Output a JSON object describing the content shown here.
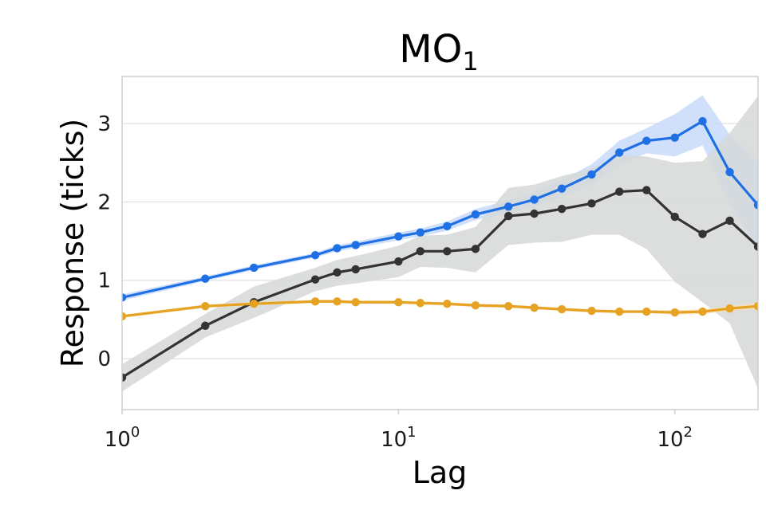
{
  "chart_data": {
    "type": "line",
    "title": "MO",
    "title_subscript": "1",
    "xlabel": "Lag",
    "ylabel": "Response (ticks)",
    "xscale": "log",
    "xlim": [
      1,
      200
    ],
    "ylim": [
      -0.65,
      3.6
    ],
    "x_ticks": [
      {
        "value": 1,
        "base": "10",
        "exp": "0"
      },
      {
        "value": 10,
        "base": "10",
        "exp": "1"
      },
      {
        "value": 100,
        "base": "10",
        "exp": "2"
      }
    ],
    "y_ticks": [
      {
        "value": 0,
        "label": "0"
      },
      {
        "value": 1,
        "label": "1"
      },
      {
        "value": 2,
        "label": "2"
      },
      {
        "value": 3,
        "label": "3"
      }
    ],
    "grid": "horizontal",
    "series": [
      {
        "color": "#1f6fe5",
        "band_color": "#c8dafa",
        "x": [
          1,
          2,
          3,
          5,
          6,
          7,
          10,
          12,
          15,
          19,
          25,
          31,
          39,
          50,
          63,
          79,
          100,
          126,
          158,
          200
        ],
        "values": [
          0.78,
          1.02,
          1.16,
          1.32,
          1.41,
          1.45,
          1.56,
          1.61,
          1.69,
          1.84,
          1.94,
          2.03,
          2.17,
          2.35,
          2.63,
          2.78,
          2.82,
          3.03,
          2.38,
          1.96
        ],
        "band_lower": [
          0.74,
          0.99,
          1.13,
          1.29,
          1.37,
          1.41,
          1.51,
          1.56,
          1.63,
          1.77,
          1.86,
          1.94,
          2.06,
          2.22,
          2.48,
          2.62,
          2.58,
          2.72,
          1.96,
          1.42
        ],
        "band_upper": [
          0.82,
          1.05,
          1.19,
          1.35,
          1.45,
          1.49,
          1.61,
          1.66,
          1.75,
          1.91,
          2.02,
          2.12,
          2.28,
          2.48,
          2.78,
          2.94,
          3.12,
          3.36,
          2.86,
          2.52
        ]
      },
      {
        "color": "#333333",
        "band_color": "#d6d8d8",
        "x": [
          1,
          2,
          3,
          5,
          6,
          7,
          10,
          12,
          15,
          19,
          25,
          31,
          39,
          50,
          63,
          79,
          100,
          126,
          158,
          200
        ],
        "values": [
          -0.24,
          0.42,
          0.72,
          1.01,
          1.1,
          1.14,
          1.24,
          1.37,
          1.37,
          1.4,
          1.82,
          1.85,
          1.91,
          1.98,
          2.13,
          2.15,
          1.81,
          1.59,
          1.76,
          1.43
        ],
        "band_lower": [
          -0.42,
          0.27,
          0.52,
          0.86,
          0.93,
          0.96,
          1.04,
          1.17,
          1.16,
          1.1,
          1.45,
          1.48,
          1.49,
          1.58,
          1.58,
          1.4,
          0.98,
          0.72,
          0.45,
          -0.38
        ],
        "band_upper": [
          -0.07,
          0.57,
          0.92,
          1.16,
          1.26,
          1.31,
          1.44,
          1.57,
          1.58,
          1.68,
          2.18,
          2.22,
          2.33,
          2.42,
          2.6,
          2.58,
          2.5,
          2.52,
          2.88,
          3.35
        ]
      },
      {
        "color": "#e6a223",
        "band_color": "#f7e2bc",
        "x": [
          1,
          2,
          3,
          5,
          6,
          7,
          10,
          12,
          15,
          19,
          25,
          31,
          39,
          50,
          63,
          79,
          100,
          126,
          158,
          200
        ],
        "values": [
          0.54,
          0.67,
          0.7,
          0.73,
          0.73,
          0.72,
          0.72,
          0.71,
          0.7,
          0.68,
          0.67,
          0.65,
          0.63,
          0.61,
          0.6,
          0.6,
          0.59,
          0.6,
          0.64,
          0.67
        ],
        "band_lower": [
          0.52,
          0.65,
          0.68,
          0.71,
          0.71,
          0.7,
          0.7,
          0.69,
          0.68,
          0.66,
          0.65,
          0.63,
          0.61,
          0.59,
          0.58,
          0.58,
          0.56,
          0.57,
          0.61,
          0.63
        ],
        "band_upper": [
          0.56,
          0.69,
          0.72,
          0.75,
          0.75,
          0.74,
          0.74,
          0.73,
          0.72,
          0.7,
          0.69,
          0.67,
          0.65,
          0.63,
          0.62,
          0.62,
          0.62,
          0.63,
          0.67,
          0.71
        ]
      }
    ]
  }
}
